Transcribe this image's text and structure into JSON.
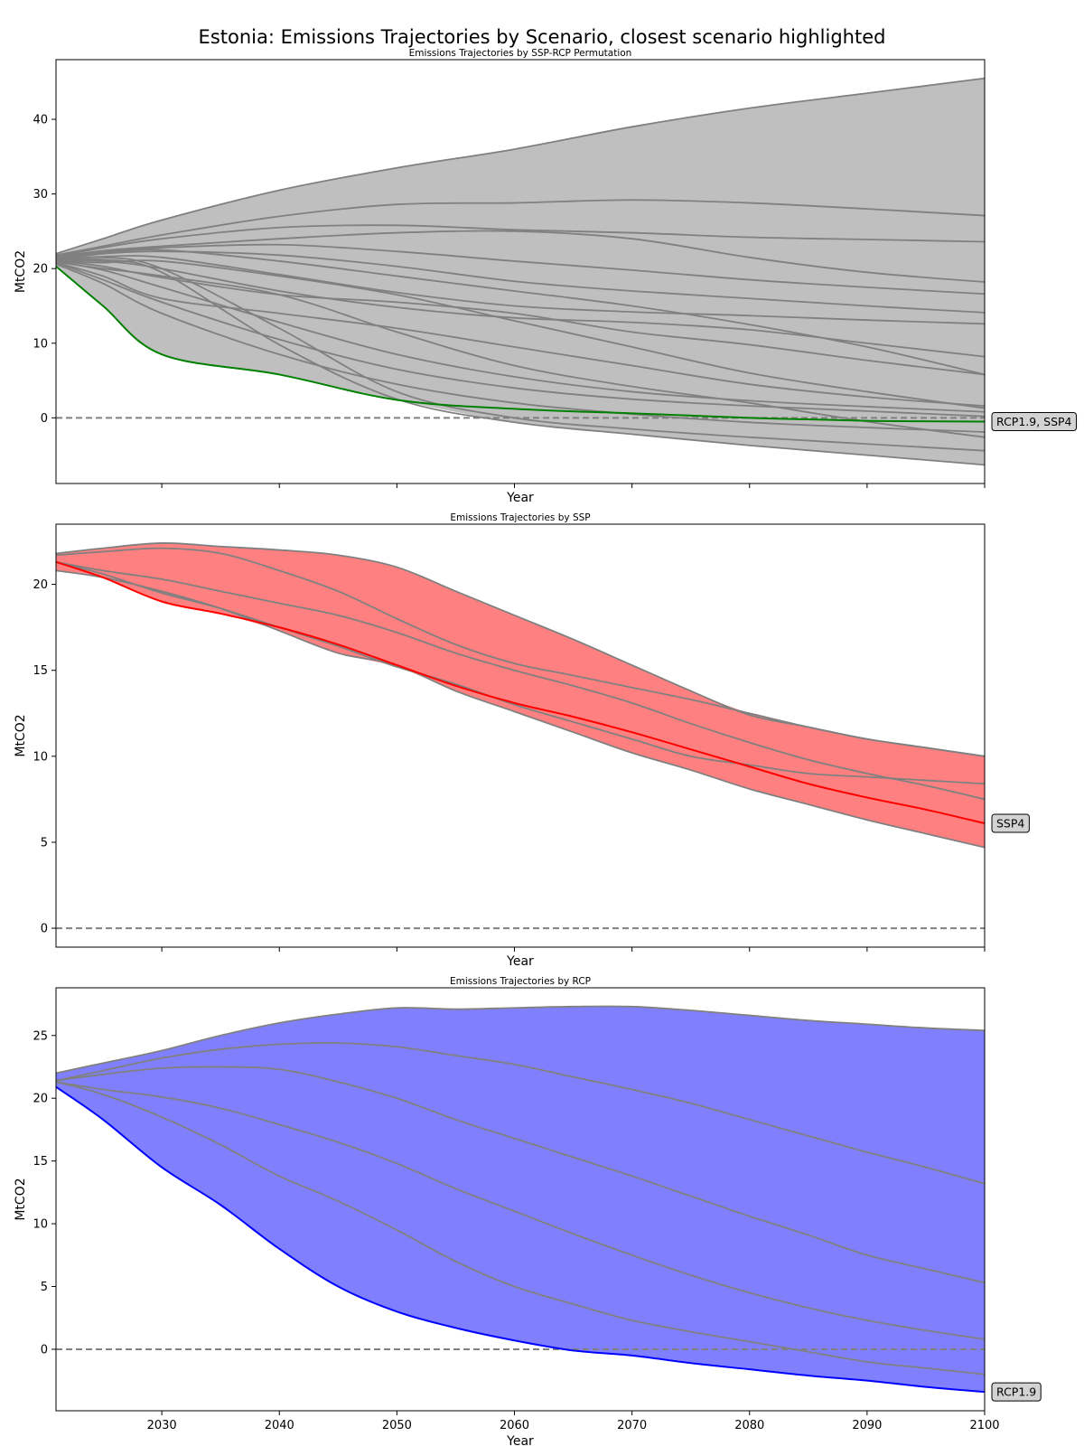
{
  "title": "Estonia: Emissions Trajectories by Scenario, closest scenario highlighted",
  "chart_data": [
    {
      "type": "line",
      "title": "Emissions Trajectories by SSP-RCP Permutation",
      "xlabel": "Year",
      "ylabel": "MtCO2",
      "xlim": [
        2021,
        2100
      ],
      "ylim": [
        -8.8,
        48
      ],
      "yticks": [
        0,
        10,
        20,
        30,
        40
      ],
      "xticks": [
        2030,
        2040,
        2050,
        2060,
        2070,
        2080,
        2090,
        2100
      ],
      "show_xtick_labels": false,
      "fill_color": "#bfbfbf",
      "line_color": "#808080",
      "highlight_color": "#008000",
      "x": [
        2021,
        2025,
        2030,
        2040,
        2050,
        2060,
        2070,
        2080,
        2090,
        2100
      ],
      "series": [
        {
          "values": [
            22.0,
            24.0,
            26.5,
            30.5,
            33.5,
            36.0,
            39.0,
            41.5,
            43.5,
            45.5
          ]
        },
        {
          "values": [
            21.8,
            23.0,
            24.5,
            27.0,
            28.6,
            28.8,
            29.2,
            28.8,
            28.0,
            27.1
          ]
        },
        {
          "values": [
            21.6,
            22.8,
            24.0,
            25.5,
            25.8,
            25.2,
            24.8,
            24.2,
            23.9,
            23.6
          ]
        },
        {
          "values": [
            21.5,
            22.4,
            23.0,
            24.0,
            24.8,
            25.0,
            24.0,
            21.5,
            19.5,
            18.2
          ]
        },
        {
          "values": [
            21.5,
            22.2,
            22.8,
            23.2,
            22.3,
            21.0,
            19.8,
            18.5,
            17.5,
            16.6
          ]
        },
        {
          "values": [
            21.4,
            22.0,
            22.3,
            21.8,
            20.3,
            18.3,
            17.0,
            16.0,
            15.0,
            14.1
          ]
        },
        {
          "values": [
            21.2,
            21.6,
            21.5,
            19.2,
            16.8,
            15.0,
            14.2,
            13.7,
            13.1,
            12.6
          ]
        },
        {
          "values": [
            21.0,
            21.0,
            20.0,
            17.0,
            14.8,
            13.4,
            12.8,
            11.8,
            10.0,
            8.2
          ]
        },
        {
          "values": [
            21.0,
            20.3,
            18.8,
            16.5,
            15.5,
            14.0,
            11.5,
            9.8,
            7.7,
            5.8
          ]
        },
        {
          "values": [
            21.0,
            20.8,
            21.0,
            19.0,
            16.5,
            13.0,
            9.5,
            6.0,
            3.5,
            1.3
          ]
        },
        {
          "values": [
            20.9,
            19.8,
            17.5,
            12.8,
            8.5,
            5.5,
            3.5,
            2.3,
            1.5,
            0.8
          ]
        },
        {
          "values": [
            20.8,
            18.5,
            15.5,
            10.5,
            6.5,
            4.0,
            2.5,
            1.6,
            0.9,
            0.2
          ]
        },
        {
          "values": [
            20.8,
            19.0,
            16.0,
            14.0,
            12.0,
            9.5,
            7.0,
            4.5,
            2.8,
            1.6
          ]
        },
        {
          "values": [
            20.6,
            18.0,
            14.0,
            8.5,
            4.5,
            2.0,
            0.5,
            -0.6,
            -1.3,
            -1.9
          ]
        },
        {
          "values": [
            20.9,
            20.0,
            19.0,
            16.5,
            11.5,
            7.0,
            4.2,
            2.0,
            -0.5,
            -2.6
          ]
        },
        {
          "values": [
            21.0,
            21.5,
            20.0,
            12.0,
            3.5,
            0.0,
            -1.5,
            -2.6,
            -3.5,
            -4.4
          ]
        },
        {
          "values": [
            20.9,
            21.2,
            19.5,
            9.8,
            2.5,
            -0.6,
            -2.2,
            -3.7,
            -5.0,
            -6.3
          ]
        },
        {
          "values": [
            21.2,
            22.0,
            22.5,
            21.0,
            19.0,
            17.0,
            15.0,
            12.5,
            9.5,
            5.8
          ]
        }
      ],
      "highlight": {
        "name": "RCP1.9, SSP4",
        "values": [
          20.3,
          15.0,
          8.5,
          5.8,
          2.4,
          1.2,
          0.6,
          0.0,
          -0.4,
          -0.5
        ]
      },
      "zero_line": 0
    },
    {
      "type": "line",
      "title": "Emissions Trajectories by SSP",
      "xlabel": "Year",
      "ylabel": "MtCO2",
      "xlim": [
        2021,
        2100
      ],
      "ylim": [
        -1.1,
        23.5
      ],
      "yticks": [
        0,
        5,
        10,
        15,
        20
      ],
      "xticks": [
        2030,
        2040,
        2050,
        2060,
        2070,
        2080,
        2090,
        2100
      ],
      "show_xtick_labels": false,
      "fill_color": "#ff8080",
      "line_color": "#808080",
      "highlight_color": "#ff0000",
      "x": [
        2021,
        2025,
        2030,
        2035,
        2040,
        2045,
        2050,
        2055,
        2060,
        2065,
        2070,
        2075,
        2080,
        2085,
        2090,
        2095,
        2100
      ],
      "series": [
        {
          "values": [
            21.8,
            22.1,
            22.4,
            22.2,
            22.0,
            21.7,
            21.0,
            19.6,
            18.2,
            16.8,
            15.3,
            13.8,
            12.4,
            11.7,
            11.0,
            10.5,
            10.0
          ]
        },
        {
          "values": [
            21.7,
            21.9,
            22.1,
            21.8,
            20.8,
            19.6,
            18.0,
            16.5,
            15.4,
            14.7,
            14.0,
            13.3,
            12.5,
            11.7,
            11.0,
            10.5,
            10.0
          ]
        },
        {
          "values": [
            21.3,
            20.8,
            20.3,
            19.6,
            18.9,
            18.2,
            17.2,
            16.0,
            15.0,
            14.1,
            13.1,
            11.9,
            10.8,
            9.8,
            9.0,
            8.3,
            7.5
          ]
        },
        {
          "values": [
            21.3,
            20.6,
            19.5,
            18.6,
            17.5,
            16.4,
            15.2,
            14.2,
            13.0,
            12.0,
            11.0,
            10.0,
            9.5,
            9.0,
            8.8,
            8.6,
            8.4
          ]
        },
        {
          "values": [
            20.8,
            20.4,
            19.6,
            18.6,
            17.3,
            16.0,
            15.3,
            13.8,
            12.6,
            11.4,
            10.2,
            9.2,
            8.1,
            7.2,
            6.3,
            5.5,
            4.7
          ]
        }
      ],
      "highlight": {
        "name": "SSP4",
        "values": [
          21.3,
          20.4,
          19.0,
          18.3,
          17.5,
          16.5,
          15.3,
          14.1,
          13.1,
          12.3,
          11.4,
          10.4,
          9.4,
          8.4,
          7.6,
          6.9,
          6.1
        ]
      },
      "zero_line": 0
    },
    {
      "type": "line",
      "title": "Emissions Trajectories by RCP",
      "xlabel": "Year",
      "ylabel": "MtCO2",
      "xlim": [
        2021,
        2100
      ],
      "ylim": [
        -4.9,
        28.8
      ],
      "yticks": [
        0,
        5,
        10,
        15,
        20,
        25
      ],
      "xticks": [
        2030,
        2040,
        2050,
        2060,
        2070,
        2080,
        2090,
        2100
      ],
      "show_xtick_labels": true,
      "fill_color": "#8080ff",
      "line_color": "#808080",
      "highlight_color": "#0000ff",
      "x": [
        2021,
        2025,
        2030,
        2035,
        2040,
        2045,
        2050,
        2055,
        2060,
        2065,
        2070,
        2075,
        2080,
        2085,
        2090,
        2095,
        2100
      ],
      "series": [
        {
          "values": [
            22.0,
            22.8,
            23.8,
            25.0,
            26.0,
            26.7,
            27.2,
            27.1,
            27.2,
            27.3,
            27.3,
            27.0,
            26.6,
            26.2,
            25.9,
            25.6,
            25.4
          ]
        },
        {
          "values": [
            21.4,
            22.2,
            23.2,
            23.9,
            24.3,
            24.4,
            24.1,
            23.4,
            22.7,
            21.7,
            20.7,
            19.6,
            18.3,
            17.0,
            15.7,
            14.5,
            13.2
          ]
        },
        {
          "values": [
            21.4,
            21.9,
            22.4,
            22.5,
            22.3,
            21.3,
            20.0,
            18.3,
            16.8,
            15.3,
            13.8,
            12.2,
            10.6,
            9.1,
            7.5,
            6.4,
            5.3
          ]
        },
        {
          "values": [
            21.3,
            20.7,
            20.1,
            19.2,
            17.9,
            16.5,
            14.8,
            12.8,
            11.0,
            9.2,
            7.5,
            5.9,
            4.5,
            3.3,
            2.3,
            1.5,
            0.8
          ]
        },
        {
          "values": [
            21.3,
            20.3,
            18.5,
            16.3,
            13.8,
            11.8,
            9.5,
            7.0,
            5.0,
            3.6,
            2.3,
            1.4,
            0.6,
            -0.2,
            -1.0,
            -1.5,
            -2.0
          ]
        }
      ],
      "highlight": {
        "name": "RCP1.9",
        "values": [
          20.9,
          18.3,
          14.5,
          11.5,
          8.0,
          5.0,
          3.0,
          1.7,
          0.7,
          -0.1,
          -0.5,
          -1.1,
          -1.6,
          -2.1,
          -2.5,
          -3.0,
          -3.4
        ]
      },
      "zero_line": 0
    }
  ]
}
